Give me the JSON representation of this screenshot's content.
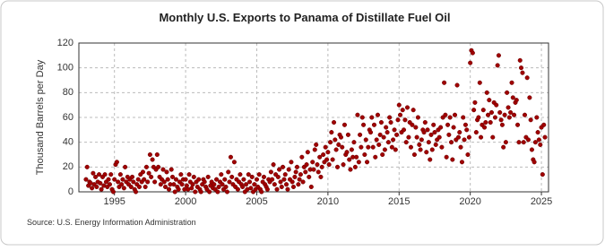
{
  "chart_data": {
    "type": "scatter",
    "title": "Monthly U.S. Exports to Panama of Distillate Fuel Oil",
    "y_label": "Thousand Barrels per Day",
    "source": "Source: U.S. Energy Information Administration",
    "color": "#a00000",
    "grid": true,
    "xlim": [
      1992.5,
      2025.5
    ],
    "xticks": [
      1995,
      2000,
      2005,
      2010,
      2015,
      2020,
      2025
    ],
    "ylim": [
      0,
      120
    ],
    "yticks": [
      0,
      20,
      40,
      60,
      80,
      100,
      120
    ],
    "x": [
      1993.0,
      1993.08,
      1993.17,
      1993.25,
      1993.33,
      1993.42,
      1993.5,
      1993.58,
      1993.67,
      1993.75,
      1993.83,
      1993.92,
      1994.0,
      1994.08,
      1994.17,
      1994.25,
      1994.33,
      1994.42,
      1994.5,
      1994.58,
      1994.67,
      1994.75,
      1994.83,
      1994.92,
      1995.0,
      1995.08,
      1995.17,
      1995.25,
      1995.33,
      1995.42,
      1995.5,
      1995.58,
      1995.67,
      1995.75,
      1995.83,
      1995.92,
      1996.0,
      1996.08,
      1996.17,
      1996.25,
      1996.33,
      1996.42,
      1996.5,
      1996.58,
      1996.67,
      1996.75,
      1996.83,
      1996.92,
      1997.0,
      1997.08,
      1997.17,
      1997.25,
      1997.33,
      1997.42,
      1997.5,
      1997.58,
      1997.67,
      1997.75,
      1997.83,
      1997.92,
      1998.0,
      1998.08,
      1998.17,
      1998.25,
      1998.33,
      1998.42,
      1998.5,
      1998.58,
      1998.67,
      1998.75,
      1998.83,
      1998.92,
      1999.0,
      1999.08,
      1999.17,
      1999.25,
      1999.33,
      1999.42,
      1999.5,
      1999.58,
      1999.67,
      1999.75,
      1999.83,
      1999.92,
      2000.0,
      2000.08,
      2000.17,
      2000.25,
      2000.33,
      2000.42,
      2000.5,
      2000.58,
      2000.67,
      2000.75,
      2000.83,
      2000.92,
      2001.0,
      2001.08,
      2001.17,
      2001.25,
      2001.33,
      2001.42,
      2001.5,
      2001.58,
      2001.67,
      2001.75,
      2001.83,
      2001.92,
      2002.0,
      2002.08,
      2002.17,
      2002.25,
      2002.33,
      2002.42,
      2002.5,
      2002.58,
      2002.67,
      2002.75,
      2002.83,
      2002.92,
      2003.0,
      2003.08,
      2003.17,
      2003.25,
      2003.33,
      2003.42,
      2003.5,
      2003.58,
      2003.67,
      2003.75,
      2003.83,
      2003.92,
      2004.0,
      2004.08,
      2004.17,
      2004.25,
      2004.33,
      2004.42,
      2004.5,
      2004.58,
      2004.67,
      2004.75,
      2004.83,
      2004.92,
      2005.0,
      2005.08,
      2005.17,
      2005.25,
      2005.33,
      2005.42,
      2005.5,
      2005.58,
      2005.67,
      2005.75,
      2005.83,
      2005.92,
      2006.0,
      2006.08,
      2006.17,
      2006.25,
      2006.33,
      2006.42,
      2006.5,
      2006.58,
      2006.67,
      2006.75,
      2006.83,
      2006.92,
      2007.0,
      2007.08,
      2007.17,
      2007.25,
      2007.33,
      2007.42,
      2007.5,
      2007.58,
      2007.67,
      2007.75,
      2007.83,
      2007.92,
      2008.0,
      2008.08,
      2008.17,
      2008.25,
      2008.33,
      2008.42,
      2008.5,
      2008.58,
      2008.67,
      2008.75,
      2008.83,
      2008.92,
      2009.0,
      2009.08,
      2009.17,
      2009.25,
      2009.33,
      2009.42,
      2009.5,
      2009.58,
      2009.67,
      2009.75,
      2009.83,
      2009.92,
      2010.0,
      2010.08,
      2010.17,
      2010.25,
      2010.33,
      2010.42,
      2010.5,
      2010.58,
      2010.67,
      2010.75,
      2010.83,
      2010.92,
      2011.0,
      2011.08,
      2011.17,
      2011.25,
      2011.33,
      2011.42,
      2011.5,
      2011.58,
      2011.67,
      2011.75,
      2011.83,
      2011.92,
      2012.0,
      2012.08,
      2012.17,
      2012.25,
      2012.33,
      2012.42,
      2012.5,
      2012.58,
      2012.67,
      2012.75,
      2012.83,
      2012.92,
      2013.0,
      2013.08,
      2013.17,
      2013.25,
      2013.33,
      2013.42,
      2013.5,
      2013.58,
      2013.67,
      2013.75,
      2013.83,
      2013.92,
      2014.0,
      2014.08,
      2014.17,
      2014.25,
      2014.33,
      2014.42,
      2014.5,
      2014.58,
      2014.67,
      2014.75,
      2014.83,
      2014.92,
      2015.0,
      2015.08,
      2015.17,
      2015.25,
      2015.33,
      2015.42,
      2015.5,
      2015.58,
      2015.67,
      2015.75,
      2015.83,
      2015.92,
      2016.0,
      2016.08,
      2016.17,
      2016.25,
      2016.33,
      2016.42,
      2016.5,
      2016.58,
      2016.67,
      2016.75,
      2016.83,
      2016.92,
      2017.0,
      2017.08,
      2017.17,
      2017.25,
      2017.33,
      2017.42,
      2017.5,
      2017.58,
      2017.67,
      2017.75,
      2017.83,
      2017.92,
      2018.0,
      2018.08,
      2018.17,
      2018.25,
      2018.33,
      2018.42,
      2018.5,
      2018.58,
      2018.67,
      2018.75,
      2018.83,
      2018.92,
      2019.0,
      2019.08,
      2019.17,
      2019.25,
      2019.33,
      2019.42,
      2019.5,
      2019.58,
      2019.67,
      2019.75,
      2019.83,
      2019.92,
      2020.0,
      2020.08,
      2020.17,
      2020.25,
      2020.33,
      2020.42,
      2020.5,
      2020.58,
      2020.67,
      2020.75,
      2020.83,
      2020.92,
      2021.0,
      2021.08,
      2021.17,
      2021.25,
      2021.33,
      2021.42,
      2021.5,
      2021.58,
      2021.67,
      2021.75,
      2021.83,
      2021.92,
      2022.0,
      2022.08,
      2022.17,
      2022.25,
      2022.33,
      2022.42,
      2022.5,
      2022.58,
      2022.67,
      2022.75,
      2022.83,
      2022.92,
      2023.0,
      2023.08,
      2023.17,
      2023.25,
      2023.33,
      2023.42,
      2023.5,
      2023.58,
      2023.67,
      2023.75,
      2023.83,
      2023.92,
      2024.0,
      2024.08,
      2024.17,
      2024.25,
      2024.33,
      2024.42,
      2024.5,
      2024.58,
      2024.67,
      2024.75,
      2024.83,
      2024.92,
      2025.0,
      2025.08,
      2025.17,
      2025.25
    ],
    "values": [
      10,
      20,
      5,
      8,
      7,
      3,
      15,
      6,
      12,
      4,
      8,
      14,
      7,
      2,
      12,
      5,
      14,
      8,
      4,
      10,
      6,
      14,
      2,
      0,
      10,
      22,
      24,
      8,
      4,
      14,
      6,
      10,
      3,
      20,
      8,
      12,
      6,
      10,
      4,
      12,
      8,
      2,
      0,
      6,
      10,
      4,
      14,
      8,
      16,
      10,
      4,
      20,
      8,
      15,
      30,
      12,
      26,
      20,
      8,
      18,
      30,
      20,
      12,
      6,
      10,
      18,
      8,
      4,
      16,
      10,
      2,
      6,
      18,
      12,
      6,
      0,
      10,
      4,
      2,
      8,
      14,
      6,
      10,
      2,
      10,
      5,
      2,
      14,
      8,
      3,
      6,
      12,
      0,
      8,
      4,
      10,
      2,
      0,
      6,
      10,
      8,
      4,
      2,
      12,
      0,
      5,
      8,
      3,
      6,
      2,
      10,
      0,
      4,
      8,
      14,
      6,
      2,
      10,
      4,
      0,
      16,
      8,
      28,
      12,
      6,
      24,
      4,
      10,
      2,
      8,
      14,
      6,
      4,
      10,
      0,
      6,
      2,
      14,
      8,
      3,
      12,
      0,
      6,
      2,
      10,
      4,
      14,
      2,
      0,
      8,
      12,
      6,
      4,
      2,
      10,
      8,
      16,
      10,
      22,
      6,
      14,
      2,
      12,
      18,
      8,
      4,
      20,
      10,
      14,
      6,
      2,
      18,
      10,
      24,
      8,
      4,
      12,
      16,
      20,
      6,
      10,
      14,
      28,
      8,
      20,
      16,
      22,
      32,
      12,
      18,
      4,
      24,
      18,
      34,
      38,
      22,
      16,
      28,
      12,
      20,
      30,
      24,
      36,
      26,
      32,
      22,
      40,
      48,
      26,
      56,
      42,
      34,
      20,
      38,
      46,
      44,
      36,
      22,
      54,
      30,
      32,
      46,
      26,
      18,
      34,
      28,
      40,
      20,
      28,
      62,
      24,
      46,
      36,
      60,
      54,
      30,
      42,
      24,
      36,
      50,
      48,
      60,
      36,
      54,
      28,
      42,
      62,
      38,
      46,
      56,
      30,
      44,
      34,
      52,
      48,
      40,
      60,
      56,
      36,
      42,
      50,
      34,
      46,
      58,
      70,
      62,
      48,
      66,
      50,
      58,
      40,
      68,
      44,
      56,
      36,
      54,
      66,
      30,
      52,
      44,
      60,
      38,
      34,
      42,
      50,
      48,
      56,
      32,
      50,
      40,
      26,
      46,
      34,
      54,
      48,
      38,
      42,
      50,
      44,
      52,
      36,
      60,
      88,
      62,
      28,
      54,
      46,
      60,
      40,
      26,
      52,
      62,
      42,
      86,
      44,
      48,
      36,
      24,
      60,
      42,
      54,
      50,
      30,
      44,
      104,
      114,
      112,
      66,
      72,
      48,
      58,
      60,
      88,
      44,
      54,
      66,
      52,
      56,
      80,
      62,
      74,
      56,
      64,
      44,
      72,
      60,
      70,
      102,
      110,
      64,
      58,
      54,
      36,
      62,
      40,
      80,
      68,
      60,
      64,
      88,
      76,
      62,
      72,
      74,
      54,
      40,
      106,
      100,
      96,
      40,
      62,
      44,
      92,
      42,
      76,
      58,
      34,
      26,
      24,
      40,
      60,
      48,
      42,
      38,
      52,
      14,
      54,
      44
    ]
  }
}
